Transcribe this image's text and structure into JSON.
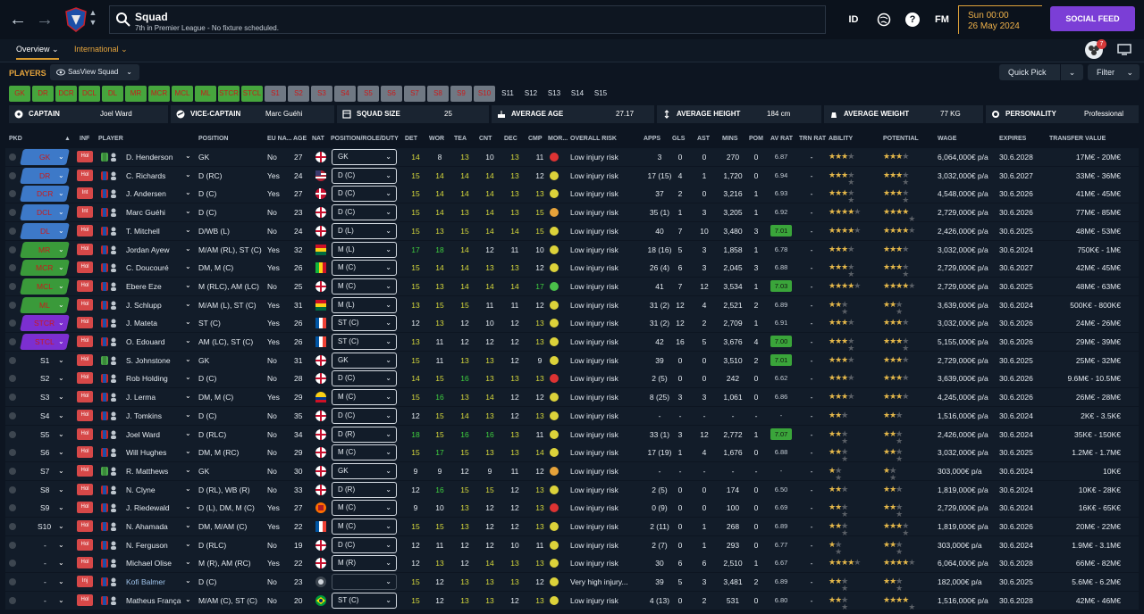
{
  "topbar": {
    "title": "Squad",
    "subtitle": "7th in Premier League - No fixture scheduled.",
    "id_label": "ID",
    "fm_label": "FM",
    "day_time": "Sun 00:00",
    "date": "26 May 2024",
    "social_feed": "SOCIAL FEED",
    "notification_count": "7"
  },
  "subtabs": {
    "overview": "Overview",
    "international": "International"
  },
  "section": {
    "players_label": "PLAYERS",
    "view_select": "SasView Squad",
    "quick_pick": "Quick Pick",
    "filter": "Filter"
  },
  "position_buttons": [
    {
      "label": "GK",
      "style": "g"
    },
    {
      "label": "DR",
      "style": "g"
    },
    {
      "label": "DCR",
      "style": "g"
    },
    {
      "label": "DCL",
      "style": "g"
    },
    {
      "label": "DL",
      "style": "g"
    },
    {
      "label": "MR",
      "style": "g"
    },
    {
      "label": "MCR",
      "style": "g"
    },
    {
      "label": "MCL",
      "style": "g"
    },
    {
      "label": "ML",
      "style": "g"
    },
    {
      "label": "STCR",
      "style": "g"
    },
    {
      "label": "STCL",
      "style": "g"
    },
    {
      "label": "S1",
      "style": "gray"
    },
    {
      "label": "S2",
      "style": "gray"
    },
    {
      "label": "S3",
      "style": "gray"
    },
    {
      "label": "S4",
      "style": "gray"
    },
    {
      "label": "S5",
      "style": "gray"
    },
    {
      "label": "S6",
      "style": "gray"
    },
    {
      "label": "S7",
      "style": "gray"
    },
    {
      "label": "S8",
      "style": "gray"
    },
    {
      "label": "S9",
      "style": "gray"
    },
    {
      "label": "S10",
      "style": "gray"
    },
    {
      "label": "S11",
      "style": "none"
    },
    {
      "label": "S12",
      "style": "none"
    },
    {
      "label": "S13",
      "style": "none"
    },
    {
      "label": "S14",
      "style": "none"
    },
    {
      "label": "S15",
      "style": "none"
    }
  ],
  "info": {
    "captain_label": "CAPTAIN",
    "captain": "Joel Ward",
    "vice_label": "VICE-CAPTAIN",
    "vice": "Marc Guéhi",
    "squad_size_label": "SQUAD SIZE",
    "squad_size": "25",
    "avg_age_label": "AVERAGE AGE",
    "avg_age": "27.17",
    "avg_height_label": "AVERAGE HEIGHT",
    "avg_height": "184 cm",
    "avg_weight_label": "AVERAGE WEIGHT",
    "avg_weight": "77 KG",
    "personality_label": "PERSONALITY",
    "personality": "Professional"
  },
  "columns": {
    "pkd": "PKD",
    "inf": "INF",
    "player": "PLAYER",
    "position": "POSITION",
    "eu": "EU NA...",
    "age": "AGE",
    "nat": "NAT",
    "role": "POSITION/ROLE/DUTY",
    "det": "DET",
    "wor": "WOR",
    "tea": "TEA",
    "cnt": "CNT",
    "dec": "DEC",
    "cmp": "CMP",
    "mor": "MOR...",
    "risk": "OVERALL RISK",
    "apps": "APPS",
    "gls": "GLS",
    "ast": "AST",
    "mins": "MINS",
    "pom": "POM",
    "avrat": "AV RAT",
    "trnrat": "TRN RAT",
    "ability": "ABILITY",
    "potential": "POTENTIAL",
    "wage": "WAGE",
    "expires": "EXPIRES",
    "tv": "TRANSFER VALUE"
  },
  "players": [
    {
      "slot": "GK",
      "slotc": "c-blue",
      "inf": "Hol",
      "name": "D. Henderson",
      "pos": "GK",
      "eu": "No",
      "age": "27",
      "nat": "eng",
      "role": "GK",
      "det": "14",
      "wor": "8",
      "tea": "13",
      "cnt": "10",
      "dec": "13",
      "cmp": "11",
      "mor": "#d33",
      "risk": "Low injury risk",
      "apps": "3",
      "gls": "0",
      "ast": "0",
      "mins": "270",
      "pom": "0",
      "avr": "6.87",
      "avrhi": false,
      "trn": "-",
      "ab": 3,
      "pot": 3,
      "wage": "6,064,000€ p/a",
      "exp": "30.6.2028",
      "tv": "17M€ - 20M€"
    },
    {
      "slot": "DR",
      "slotc": "c-blue",
      "inf": "Hol",
      "name": "C. Richards",
      "pos": "D (RC)",
      "eu": "Yes",
      "age": "24",
      "nat": "usa",
      "role": "D (C)",
      "det": "15",
      "wor": "14",
      "tea": "14",
      "cnt": "14",
      "dec": "13",
      "cmp": "12",
      "mor": "#dcd23a",
      "risk": "Low injury risk",
      "apps": "17 (15)",
      "gls": "4",
      "ast": "1",
      "mins": "1,720",
      "pom": "0",
      "avr": "6.94",
      "avrhi": false,
      "trn": "-",
      "ab": 3.5,
      "pot": 3.5,
      "wage": "3,032,000€ p/a",
      "exp": "30.6.2027",
      "tv": "33M€ - 36M€"
    },
    {
      "slot": "DCR",
      "slotc": "c-blue",
      "inf": "Int",
      "name": "J. Andersen",
      "pos": "D (C)",
      "eu": "Yes",
      "age": "27",
      "nat": "den",
      "role": "D (C)",
      "det": "15",
      "wor": "14",
      "tea": "14",
      "cnt": "14",
      "dec": "13",
      "cmp": "13",
      "mor": "#dcd23a",
      "risk": "Low injury risk",
      "apps": "37",
      "gls": "2",
      "ast": "0",
      "mins": "3,216",
      "pom": "1",
      "avr": "6.93",
      "avrhi": false,
      "trn": "-",
      "ab": 3.5,
      "pot": 3.5,
      "wage": "4,548,000€ p/a",
      "exp": "30.6.2026",
      "tv": "41M€ - 45M€"
    },
    {
      "slot": "DCL",
      "slotc": "c-blue",
      "inf": "Int",
      "name": "Marc Guéhi",
      "pos": "D (C)",
      "eu": "No",
      "age": "23",
      "nat": "eng",
      "role": "D (C)",
      "det": "15",
      "wor": "14",
      "tea": "13",
      "cnt": "14",
      "dec": "13",
      "cmp": "15",
      "mor": "#e6a33a",
      "risk": "Low injury risk",
      "apps": "35 (1)",
      "gls": "1",
      "ast": "3",
      "mins": "3,205",
      "pom": "1",
      "avr": "6.92",
      "avrhi": false,
      "trn": "-",
      "ab": 4,
      "pot": 4.5,
      "wage": "2,729,000€ p/a",
      "exp": "30.6.2026",
      "tv": "77M€ - 85M€"
    },
    {
      "slot": "DL",
      "slotc": "c-blue",
      "inf": "Hol",
      "name": "T. Mitchell",
      "pos": "D/WB (L)",
      "eu": "No",
      "age": "24",
      "nat": "eng",
      "role": "D (L)",
      "det": "15",
      "wor": "13",
      "tea": "15",
      "cnt": "14",
      "dec": "14",
      "cmp": "15",
      "mor": "#dcd23a",
      "risk": "Low injury risk",
      "apps": "40",
      "gls": "7",
      "ast": "10",
      "mins": "3,480",
      "pom": "3",
      "avr": "7.01",
      "avrhi": true,
      "trn": "-",
      "ab": 4,
      "pot": 4,
      "wage": "2,426,000€ p/a",
      "exp": "30.6.2025",
      "tv": "48M€ - 53M€"
    },
    {
      "slot": "MR",
      "slotc": "c-green",
      "inf": "Hol",
      "name": "Jordan Ayew",
      "pos": "M/AM (RL), ST (C)",
      "eu": "Yes",
      "age": "32",
      "nat": "gha",
      "role": "M (L)",
      "det": "17",
      "wor": "18",
      "tea": "14",
      "cnt": "12",
      "dec": "11",
      "cmp": "10",
      "mor": "#dcd23a",
      "risk": "Low injury risk",
      "apps": "18 (16)",
      "gls": "5",
      "ast": "3",
      "mins": "1,858",
      "pom": "1",
      "avr": "6.78",
      "avrhi": false,
      "trn": "-",
      "ab": 3,
      "pot": 3,
      "wage": "3,032,000€ p/a",
      "exp": "30.6.2024",
      "tv": "750K€ - 1M€"
    },
    {
      "slot": "MCR",
      "slotc": "c-green",
      "inf": "Hol",
      "name": "C. Doucouré",
      "pos": "DM, M (C)",
      "eu": "Yes",
      "age": "26",
      "nat": "mli",
      "role": "M (C)",
      "det": "15",
      "wor": "14",
      "tea": "14",
      "cnt": "13",
      "dec": "13",
      "cmp": "12",
      "mor": "#dcd23a",
      "risk": "Low injury risk",
      "apps": "26 (4)",
      "gls": "6",
      "ast": "3",
      "mins": "2,045",
      "pom": "3",
      "avr": "6.88",
      "avrhi": false,
      "trn": "-",
      "ab": 3.5,
      "pot": 3.5,
      "wage": "2,729,000€ p/a",
      "exp": "30.6.2027",
      "tv": "42M€ - 45M€"
    },
    {
      "slot": "MCL",
      "slotc": "c-green",
      "inf": "Hol",
      "name": "Ebere Eze",
      "pos": "M (RLC), AM (LC)",
      "eu": "No",
      "age": "25",
      "nat": "eng",
      "role": "M (C)",
      "det": "15",
      "wor": "13",
      "tea": "14",
      "cnt": "14",
      "dec": "14",
      "cmp": "17",
      "mor": "#4ac04a",
      "risk": "Low injury risk",
      "apps": "41",
      "gls": "7",
      "ast": "12",
      "mins": "3,534",
      "pom": "1",
      "avr": "7.03",
      "avrhi": true,
      "trn": "-",
      "ab": 4,
      "pot": 4,
      "wage": "2,729,000€ p/a",
      "exp": "30.6.2025",
      "tv": "48M€ - 63M€"
    },
    {
      "slot": "ML",
      "slotc": "c-green",
      "inf": "Hol",
      "name": "J. Schlupp",
      "pos": "M/AM (L), ST (C)",
      "eu": "Yes",
      "age": "31",
      "nat": "gha",
      "role": "M (L)",
      "det": "13",
      "wor": "15",
      "tea": "15",
      "cnt": "11",
      "dec": "11",
      "cmp": "12",
      "mor": "#dcd23a",
      "risk": "Low injury risk",
      "apps": "31 (2)",
      "gls": "12",
      "ast": "4",
      "mins": "2,521",
      "pom": "2",
      "avr": "6.89",
      "avrhi": false,
      "trn": "-",
      "ab": 2.5,
      "pot": 2.5,
      "wage": "3,639,000€ p/a",
      "exp": "30.6.2024",
      "tv": "500K€ - 800K€"
    },
    {
      "slot": "STCR",
      "slotc": "c-purple",
      "inf": "Hol",
      "name": "J. Mateta",
      "pos": "ST (C)",
      "eu": "Yes",
      "age": "26",
      "nat": "fra",
      "role": "ST (C)",
      "det": "12",
      "wor": "13",
      "tea": "12",
      "cnt": "10",
      "dec": "12",
      "cmp": "13",
      "mor": "#dcd23a",
      "risk": "Low injury risk",
      "apps": "31 (2)",
      "gls": "12",
      "ast": "2",
      "mins": "2,709",
      "pom": "1",
      "avr": "6.91",
      "avrhi": false,
      "trn": "-",
      "ab": 3,
      "pot": 3,
      "wage": "3,032,000€ p/a",
      "exp": "30.6.2026",
      "tv": "24M€ - 26M€"
    },
    {
      "slot": "STCL",
      "slotc": "c-purple",
      "inf": "Hol",
      "name": "O. Edouard",
      "pos": "AM (LC), ST (C)",
      "eu": "Yes",
      "age": "26",
      "nat": "fra",
      "role": "ST (C)",
      "det": "13",
      "wor": "11",
      "tea": "12",
      "cnt": "12",
      "dec": "12",
      "cmp": "13",
      "mor": "#dcd23a",
      "risk": "Low injury risk",
      "apps": "42",
      "gls": "16",
      "ast": "5",
      "mins": "3,676",
      "pom": "4",
      "avr": "7.00",
      "avrhi": true,
      "trn": "-",
      "ab": 3.5,
      "pot": 3.5,
      "wage": "5,155,000€ p/a",
      "exp": "30.6.2026",
      "tv": "29M€ - 39M€"
    },
    {
      "slot": "S1",
      "slotc": "c-none",
      "inf": "Hol",
      "name": "S. Johnstone",
      "pos": "GK",
      "eu": "No",
      "age": "31",
      "nat": "eng",
      "role": "GK",
      "det": "15",
      "wor": "11",
      "tea": "13",
      "cnt": "13",
      "dec": "12",
      "cmp": "9",
      "mor": "#dcd23a",
      "risk": "Low injury risk",
      "apps": "39",
      "gls": "0",
      "ast": "0",
      "mins": "3,510",
      "pom": "2",
      "avr": "7.01",
      "avrhi": true,
      "trn": "-",
      "ab": 3,
      "pot": 3,
      "wage": "2,729,000€ p/a",
      "exp": "30.6.2025",
      "tv": "25M€ - 32M€"
    },
    {
      "slot": "S2",
      "slotc": "c-none",
      "inf": "Hol",
      "name": "Rob Holding",
      "pos": "D (C)",
      "eu": "No",
      "age": "28",
      "nat": "eng",
      "role": "D (C)",
      "det": "14",
      "wor": "15",
      "tea": "16",
      "cnt": "13",
      "dec": "13",
      "cmp": "13",
      "mor": "#d33",
      "risk": "Low injury risk",
      "apps": "2 (5)",
      "gls": "0",
      "ast": "0",
      "mins": "242",
      "pom": "0",
      "avr": "6.62",
      "avrhi": false,
      "trn": "-",
      "ab": 3,
      "pot": 3,
      "wage": "3,639,000€ p/a",
      "exp": "30.6.2026",
      "tv": "9.6M€ - 10.5M€"
    },
    {
      "slot": "S3",
      "slotc": "c-none",
      "inf": "Hol",
      "name": "J. Lerma",
      "pos": "DM, M (C)",
      "eu": "Yes",
      "age": "29",
      "nat": "col",
      "role": "M (C)",
      "det": "15",
      "wor": "16",
      "tea": "13",
      "cnt": "14",
      "dec": "12",
      "cmp": "12",
      "mor": "#dcd23a",
      "risk": "Low injury risk",
      "apps": "8 (25)",
      "gls": "3",
      "ast": "3",
      "mins": "1,061",
      "pom": "0",
      "avr": "6.86",
      "avrhi": false,
      "trn": "-",
      "ab": 3,
      "pot": 3,
      "wage": "4,245,000€ p/a",
      "exp": "30.6.2026",
      "tv": "26M€ - 28M€"
    },
    {
      "slot": "S4",
      "slotc": "c-none",
      "inf": "Hol",
      "name": "J. Tomkins",
      "pos": "D (C)",
      "eu": "No",
      "age": "35",
      "nat": "eng",
      "role": "D (C)",
      "det": "12",
      "wor": "15",
      "tea": "14",
      "cnt": "13",
      "dec": "12",
      "cmp": "13",
      "mor": "#dcd23a",
      "risk": "Low injury risk",
      "apps": "-",
      "gls": "-",
      "ast": "-",
      "mins": "-",
      "pom": "-",
      "avr": "-",
      "avrhi": false,
      "trn": "-",
      "ab": 2,
      "pot": 2,
      "wage": "1,516,000€ p/a",
      "exp": "30.6.2024",
      "tv": "2K€ - 3.5K€"
    },
    {
      "slot": "S5",
      "slotc": "c-none",
      "inf": "Hol",
      "name": "Joel Ward",
      "pos": "D (RLC)",
      "eu": "No",
      "age": "34",
      "nat": "eng",
      "role": "D (R)",
      "det": "18",
      "wor": "15",
      "tea": "16",
      "cnt": "16",
      "dec": "13",
      "cmp": "11",
      "mor": "#dcd23a",
      "risk": "Low injury risk",
      "apps": "33 (1)",
      "gls": "3",
      "ast": "12",
      "mins": "2,772",
      "pom": "1",
      "avr": "7.07",
      "avrhi": true,
      "trn": "-",
      "ab": 2.5,
      "pot": 2.5,
      "wage": "2,426,000€ p/a",
      "exp": "30.6.2024",
      "tv": "35K€ - 150K€"
    },
    {
      "slot": "S6",
      "slotc": "c-none",
      "inf": "Hol",
      "name": "Will Hughes",
      "pos": "DM, M (RC)",
      "eu": "No",
      "age": "29",
      "nat": "eng",
      "role": "M (C)",
      "det": "15",
      "wor": "17",
      "tea": "15",
      "cnt": "13",
      "dec": "13",
      "cmp": "14",
      "mor": "#dcd23a",
      "risk": "Low injury risk",
      "apps": "17 (19)",
      "gls": "1",
      "ast": "4",
      "mins": "1,676",
      "pom": "0",
      "avr": "6.88",
      "avrhi": false,
      "trn": "-",
      "ab": 2.5,
      "pot": 2.5,
      "wage": "3,032,000€ p/a",
      "exp": "30.6.2025",
      "tv": "1.2M€ - 1.7M€"
    },
    {
      "slot": "S7",
      "slotc": "c-none",
      "inf": "Hol",
      "name": "R. Matthews",
      "pos": "GK",
      "eu": "No",
      "age": "30",
      "nat": "eng",
      "role": "GK",
      "det": "9",
      "wor": "9",
      "tea": "12",
      "cnt": "9",
      "dec": "11",
      "cmp": "12",
      "mor": "#e6a33a",
      "risk": "Low injury risk",
      "apps": "-",
      "gls": "-",
      "ast": "-",
      "mins": "-",
      "pom": "-",
      "avr": "-",
      "avrhi": false,
      "trn": "-",
      "ab": 1.5,
      "pot": 1.5,
      "wage": "303,000€ p/a",
      "exp": "30.6.2024",
      "tv": "10K€"
    },
    {
      "slot": "S8",
      "slotc": "c-none",
      "inf": "Hol",
      "name": "N. Clyne",
      "pos": "D (RL), WB (R)",
      "eu": "No",
      "age": "33",
      "nat": "eng",
      "role": "D (R)",
      "det": "12",
      "wor": "16",
      "tea": "15",
      "cnt": "15",
      "dec": "12",
      "cmp": "13",
      "mor": "#dcd23a",
      "risk": "Low injury risk",
      "apps": "2 (5)",
      "gls": "0",
      "ast": "0",
      "mins": "174",
      "pom": "0",
      "avr": "6.50",
      "avrhi": false,
      "trn": "-",
      "ab": 2,
      "pot": 2,
      "wage": "1,819,000€ p/a",
      "exp": "30.6.2024",
      "tv": "10K€ - 28K€"
    },
    {
      "slot": "S9",
      "slotc": "c-none",
      "inf": "Hol",
      "name": "J. Riedewald",
      "pos": "D (L), DM, M (C)",
      "eu": "Yes",
      "age": "27",
      "nat": "ned",
      "role": "M (C)",
      "det": "9",
      "wor": "10",
      "tea": "13",
      "cnt": "12",
      "dec": "12",
      "cmp": "13",
      "mor": "#d33",
      "risk": "Low injury risk",
      "apps": "0 (9)",
      "gls": "0",
      "ast": "0",
      "mins": "100",
      "pom": "0",
      "avr": "6.69",
      "avrhi": false,
      "trn": "-",
      "ab": 2.5,
      "pot": 2.5,
      "wage": "2,729,000€ p/a",
      "exp": "30.6.2024",
      "tv": "16K€ - 65K€"
    },
    {
      "slot": "S10",
      "slotc": "c-none",
      "inf": "Hol",
      "name": "N. Ahamada",
      "pos": "DM, M/AM (C)",
      "eu": "Yes",
      "age": "22",
      "nat": "fra",
      "role": "M (C)",
      "det": "15",
      "wor": "15",
      "tea": "13",
      "cnt": "12",
      "dec": "12",
      "cmp": "13",
      "mor": "#dcd23a",
      "risk": "Low injury risk",
      "apps": "2 (11)",
      "gls": "0",
      "ast": "1",
      "mins": "268",
      "pom": "0",
      "avr": "6.89",
      "avrhi": false,
      "trn": "-",
      "ab": 2.5,
      "pot": 3.5,
      "wage": "1,819,000€ p/a",
      "exp": "30.6.2026",
      "tv": "20M€ - 22M€"
    },
    {
      "slot": "-",
      "slotc": "c-none",
      "inf": "Hol",
      "name": "N. Ferguson",
      "pos": "D (RLC)",
      "eu": "No",
      "age": "19",
      "nat": "eng",
      "role": "D (C)",
      "det": "12",
      "wor": "11",
      "tea": "12",
      "cnt": "12",
      "dec": "10",
      "cmp": "11",
      "mor": "#dcd23a",
      "risk": "Low injury risk",
      "apps": "2 (7)",
      "gls": "0",
      "ast": "1",
      "mins": "293",
      "pom": "0",
      "avr": "6.77",
      "avrhi": false,
      "trn": "-",
      "ab": 1.5,
      "pot": 2.5,
      "wage": "303,000€ p/a",
      "exp": "30.6.2024",
      "tv": "1.9M€ - 3.1M€"
    },
    {
      "slot": "-",
      "slotc": "c-none",
      "inf": "Hol",
      "name": "Michael Olise",
      "pos": "M (R), AM (RC)",
      "eu": "Yes",
      "age": "22",
      "nat": "eng",
      "role": "M (R)",
      "det": "12",
      "wor": "13",
      "tea": "12",
      "cnt": "14",
      "dec": "13",
      "cmp": "13",
      "mor": "#dcd23a",
      "risk": "Low injury risk",
      "apps": "30",
      "gls": "6",
      "ast": "6",
      "mins": "2,510",
      "pom": "1",
      "avr": "6.67",
      "avrhi": false,
      "trn": "-",
      "ab": 4,
      "pot": 4,
      "wage": "6,064,000€ p/a",
      "exp": "30.6.2028",
      "tv": "66M€ - 82M€"
    },
    {
      "slot": "-",
      "slotc": "c-none",
      "inf": "Inj",
      "name": "Kofi Balmer",
      "pos": "D (C)",
      "eu": "No",
      "age": "23",
      "nat": "nir",
      "role": "",
      "det": "15",
      "wor": "12",
      "tea": "13",
      "cnt": "13",
      "dec": "13",
      "cmp": "12",
      "mor": "#dcd23a",
      "risk": "Very high injury...",
      "apps": "39",
      "gls": "5",
      "ast": "3",
      "mins": "3,481",
      "pom": "2",
      "avr": "6.89",
      "avrhi": false,
      "trn": "-",
      "ab": 2.5,
      "pot": 2.5,
      "wage": "182,000€ p/a",
      "exp": "30.6.2025",
      "tv": "5.6M€ - 6.2M€"
    },
    {
      "slot": "-",
      "slotc": "c-none",
      "inf": "Hol",
      "name": "Matheus França",
      "pos": "M/AM (C), ST (C)",
      "eu": "No",
      "age": "20",
      "nat": "bra",
      "role": "ST (C)",
      "det": "15",
      "wor": "12",
      "tea": "13",
      "cnt": "13",
      "dec": "12",
      "cmp": "13",
      "mor": "#dcd23a",
      "risk": "Low injury risk",
      "apps": "4 (13)",
      "gls": "0",
      "ast": "2",
      "mins": "531",
      "pom": "0",
      "avr": "6.80",
      "avrhi": false,
      "trn": "-",
      "ab": 2.5,
      "pot": 4.5,
      "wage": "1,516,000€ p/a",
      "exp": "30.6.2028",
      "tv": "42M€ - 46M€"
    }
  ]
}
